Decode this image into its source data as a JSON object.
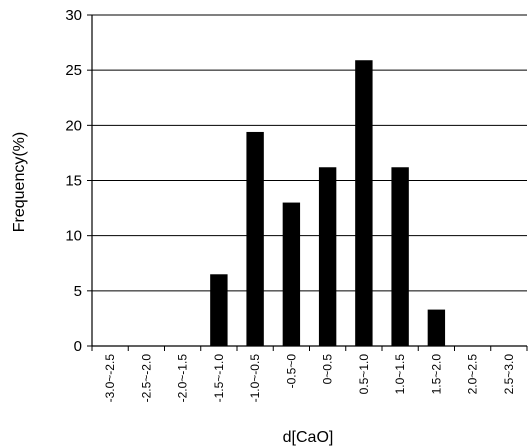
{
  "chart_data": {
    "type": "bar",
    "title": "",
    "xlabel": "d[CaO]",
    "ylabel": "Frequency(%)",
    "ylim": [
      0,
      30
    ],
    "yticks": [
      0,
      5,
      10,
      15,
      20,
      25,
      30
    ],
    "grid": true,
    "categories": [
      "-3.0~-2.5",
      "-2.5~-2.0",
      "-2.0~-1.5",
      "-1.5~-1.0",
      "-1.0~-0.5",
      "-0.5~0",
      "0~0.5",
      "0.5~1.0",
      "1.0~1.5",
      "1.5~2.0",
      "2.0~2.5",
      "2.5~3.0"
    ],
    "values": [
      0,
      0,
      0,
      6.5,
      19.4,
      13.0,
      16.2,
      25.9,
      16.2,
      3.3,
      0,
      0
    ],
    "colors": {
      "bar": "#000000",
      "grid": "#000000",
      "axis": "#000000"
    }
  }
}
